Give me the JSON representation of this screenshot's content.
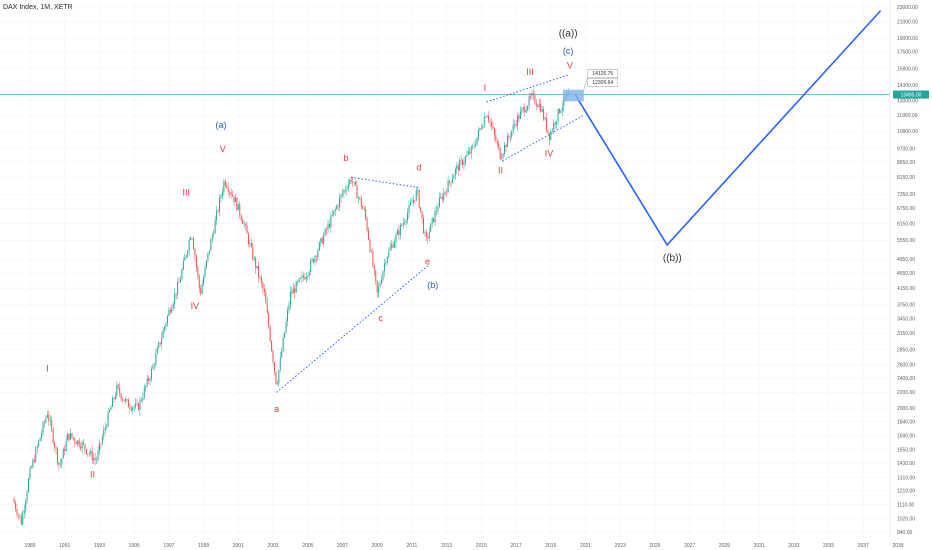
{
  "header": {
    "title": "DAX Index, 1M, XETR"
  },
  "current_price": {
    "label": "13495.00",
    "value": 13495
  },
  "info_boxes": [
    {
      "label": "14126.75",
      "value": 14126.75
    },
    {
      "label": "12305.64",
      "value": 12305.64
    }
  ],
  "colors": {
    "up": "#26a69a",
    "down": "#ef5350",
    "red_label": "#e03b3b",
    "blue_label": "#2a5fb0",
    "projection": "#2962ff",
    "price_line": "#26a69a",
    "zone": "#7fb3e8"
  },
  "chart_data": {
    "type": "candlestick",
    "title": "DAX Index, 1M, XETR",
    "y_scale": "log",
    "x_tick_labels": [
      "1989",
      "1991",
      "1993",
      "1995",
      "1997",
      "1999",
      "2001",
      "2003",
      "2005",
      "2007",
      "2009",
      "2011",
      "2013",
      "2015",
      "2017",
      "2019",
      "2021",
      "2023",
      "2025",
      "2027",
      "2029",
      "2031",
      "2033",
      "2035",
      "2037",
      "2039"
    ],
    "y_tick_labels": [
      "23000.00",
      "21000.00",
      "19000.00",
      "17500.00",
      "15800.00",
      "14300.00",
      "13000.00",
      "11900.00",
      "10800.00",
      "9700.00",
      "8950.00",
      "8150.00",
      "7350.00",
      "6750.00",
      "6150.00",
      "5550.00",
      "4950.00",
      "4550.00",
      "4150.00",
      "3750.00",
      "3450.00",
      "3150.00",
      "2850.00",
      "2600.00",
      "2400.00",
      "2200.00",
      "2000.00",
      "1840.00",
      "1690.00",
      "1550.00",
      "1430.00",
      "1310.00",
      "1210.00",
      "1110.00",
      "1020.00",
      "940.00"
    ],
    "price_path": [
      [
        1988.0,
        1150
      ],
      [
        1988.5,
        1000
      ],
      [
        1989.0,
        1350
      ],
      [
        1990.0,
        1950
      ],
      [
        1990.7,
        1400
      ],
      [
        1991.2,
        1700
      ],
      [
        1992.0,
        1600
      ],
      [
        1992.8,
        1450
      ],
      [
        1993.5,
        1900
      ],
      [
        1994.0,
        2250
      ],
      [
        1994.6,
        2050
      ],
      [
        1995.2,
        2000
      ],
      [
        1996.0,
        2500
      ],
      [
        1997.0,
        3600
      ],
      [
        1997.6,
        4300
      ],
      [
        1998.3,
        5900
      ],
      [
        1998.8,
        4000
      ],
      [
        1999.3,
        5200
      ],
      [
        2000.2,
        8050
      ],
      [
        2000.8,
        7100
      ],
      [
        2001.3,
        6200
      ],
      [
        2001.8,
        5100
      ],
      [
        2002.5,
        4000
      ],
      [
        2003.2,
        2300
      ],
      [
        2004.0,
        4000
      ],
      [
        2005.0,
        4600
      ],
      [
        2006.0,
        5800
      ],
      [
        2007.0,
        7400
      ],
      [
        2007.5,
        8100
      ],
      [
        2008.3,
        6500
      ],
      [
        2009.0,
        4000
      ],
      [
        2009.5,
        5000
      ],
      [
        2010.5,
        6200
      ],
      [
        2011.3,
        7500
      ],
      [
        2011.8,
        5500
      ],
      [
        2012.5,
        6900
      ],
      [
        2013.5,
        8500
      ],
      [
        2014.5,
        9700
      ],
      [
        2015.3,
        12200
      ],
      [
        2016.1,
        9300
      ],
      [
        2017.0,
        11500
      ],
      [
        2017.9,
        13300
      ],
      [
        2018.4,
        12600
      ],
      [
        2018.9,
        10500
      ],
      [
        2019.5,
        12300
      ],
      [
        2020.0,
        13500
      ]
    ],
    "projection_path": [
      {
        "x": 2020.4,
        "y": 13495
      },
      {
        "x": 2025.7,
        "y": 5400
      },
      {
        "x": 2038.0,
        "y": 22500
      }
    ],
    "trendlines": [
      {
        "from": {
          "x": 2003.2,
          "y": 2200
        },
        "to": {
          "x": 2011.9,
          "y": 4750
        }
      },
      {
        "from": {
          "x": 2007.5,
          "y": 8150
        },
        "to": {
          "x": 2011.5,
          "y": 7650
        }
      },
      {
        "from": {
          "x": 2015.3,
          "y": 12900
        },
        "to": {
          "x": 2020.0,
          "y": 15200
        }
      },
      {
        "from": {
          "x": 2016.2,
          "y": 9000
        },
        "to": {
          "x": 2020.9,
          "y": 11900
        }
      }
    ],
    "target_zone": {
      "x0": 2019.7,
      "x1": 2020.9,
      "y0": 12950,
      "y1": 13900
    },
    "wave_labels": [
      {
        "text": "I",
        "x": 1990.0,
        "y": 2500,
        "color": "red"
      },
      {
        "text": "II",
        "x": 1992.6,
        "y": 1310,
        "color": "red"
      },
      {
        "text": "III",
        "x": 1998.0,
        "y": 7300,
        "color": "red"
      },
      {
        "text": "IV",
        "x": 1998.5,
        "y": 3650,
        "color": "red"
      },
      {
        "text": "V",
        "x": 2000.1,
        "y": 9500,
        "color": "red"
      },
      {
        "text": "(a)",
        "x": 2000.0,
        "y": 11000,
        "color": "blue"
      },
      {
        "text": "a",
        "x": 2003.2,
        "y": 1950,
        "color": "red"
      },
      {
        "text": "b",
        "x": 2007.2,
        "y": 9000,
        "color": "red"
      },
      {
        "text": "c",
        "x": 2009.2,
        "y": 3400,
        "color": "red"
      },
      {
        "text": "d",
        "x": 2011.4,
        "y": 8500,
        "color": "red"
      },
      {
        "text": "e",
        "x": 2011.9,
        "y": 4800,
        "color": "red"
      },
      {
        "text": "(b)",
        "x": 2012.2,
        "y": 4150,
        "color": "blue"
      },
      {
        "text": "I",
        "x": 2015.2,
        "y": 13800,
        "color": "red"
      },
      {
        "text": "II",
        "x": 2016.1,
        "y": 8350,
        "color": "red"
      },
      {
        "text": "III",
        "x": 2017.8,
        "y": 15200,
        "color": "red"
      },
      {
        "text": "IV",
        "x": 2018.9,
        "y": 9250,
        "color": "red"
      },
      {
        "text": "V",
        "x": 2020.1,
        "y": 15800,
        "color": "red"
      },
      {
        "text": "(c)",
        "x": 2020.0,
        "y": 17300,
        "color": "blue"
      },
      {
        "text": "((a))",
        "x": 2020.0,
        "y": 19200,
        "color": "black"
      },
      {
        "text": "((b))",
        "x": 2026.0,
        "y": 4900,
        "color": "black"
      }
    ]
  }
}
